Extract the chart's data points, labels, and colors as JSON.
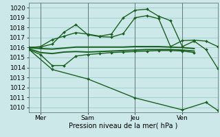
{
  "xlabel": "Pression niveau de la mer( hPa )",
  "ylim": [
    1009.5,
    1020.5
  ],
  "xlim": [
    0,
    16
  ],
  "yticks": [
    1010,
    1011,
    1012,
    1013,
    1014,
    1015,
    1016,
    1017,
    1018,
    1019,
    1020
  ],
  "xtick_positions": [
    1,
    5,
    9,
    13
  ],
  "xtick_labels": [
    "Mer",
    "Sam",
    "Jeu",
    "Ven"
  ],
  "vlines": [
    1,
    5,
    9,
    13
  ],
  "bg_color": "#cce8e8",
  "grid_color": "#99cccc",
  "line_color": "#1a6020",
  "vline_color": "#607878",
  "lines": [
    {
      "x": [
        0,
        1,
        2,
        3,
        4,
        5,
        6,
        7,
        8,
        9,
        10,
        11,
        12,
        13,
        14
      ],
      "y": [
        1015.8,
        1015.3,
        1014.2,
        1014.2,
        1015.15,
        1015.3,
        1015.4,
        1015.5,
        1015.55,
        1015.6,
        1015.65,
        1015.7,
        1015.7,
        1015.65,
        1015.5
      ],
      "marker": true,
      "lw": 1.0
    },
    {
      "x": [
        0,
        1,
        2,
        3,
        4,
        5,
        6,
        7,
        8,
        9,
        10,
        11,
        12,
        13,
        14
      ],
      "y": [
        1015.9,
        1015.5,
        1015.4,
        1015.55,
        1015.6,
        1015.55,
        1015.6,
        1015.65,
        1015.7,
        1015.75,
        1015.8,
        1015.8,
        1015.8,
        1015.75,
        1015.65
      ],
      "marker": false,
      "lw": 1.4
    },
    {
      "x": [
        0,
        1,
        2,
        3,
        4,
        5,
        6,
        7,
        8,
        9,
        10,
        11,
        12,
        13,
        14
      ],
      "y": [
        1016.0,
        1015.9,
        1015.85,
        1015.95,
        1016.05,
        1016.05,
        1016.05,
        1016.05,
        1016.05,
        1016.1,
        1016.1,
        1016.1,
        1016.05,
        1016.0,
        1015.9
      ],
      "marker": false,
      "lw": 1.4
    },
    {
      "x": [
        0,
        1,
        2,
        3,
        4,
        5,
        6,
        7,
        8,
        9,
        10,
        11,
        12,
        13,
        14,
        15,
        16
      ],
      "y": [
        1016.0,
        1016.1,
        1016.8,
        1017.15,
        1017.5,
        1017.35,
        1017.15,
        1017.35,
        1019.0,
        1019.75,
        1019.85,
        1019.15,
        1018.7,
        1016.1,
        1016.65,
        1015.8,
        1013.9
      ],
      "marker": true,
      "lw": 1.0
    },
    {
      "x": [
        0,
        1,
        2,
        3,
        4,
        5,
        6,
        7,
        8,
        9,
        10,
        11,
        12,
        13,
        14,
        15,
        16
      ],
      "y": [
        1016.05,
        1016.05,
        1016.35,
        1017.55,
        1018.3,
        1017.3,
        1017.1,
        1017.05,
        1017.4,
        1019.0,
        1019.2,
        1018.9,
        1016.1,
        1016.7,
        1016.75,
        1016.65,
        1016.1
      ],
      "marker": true,
      "lw": 1.0
    },
    {
      "x": [
        0,
        2,
        5,
        9,
        13,
        15,
        16
      ],
      "y": [
        1015.85,
        1013.8,
        1012.85,
        1010.95,
        1009.75,
        1010.5,
        1009.7
      ],
      "marker": true,
      "lw": 1.0
    }
  ]
}
